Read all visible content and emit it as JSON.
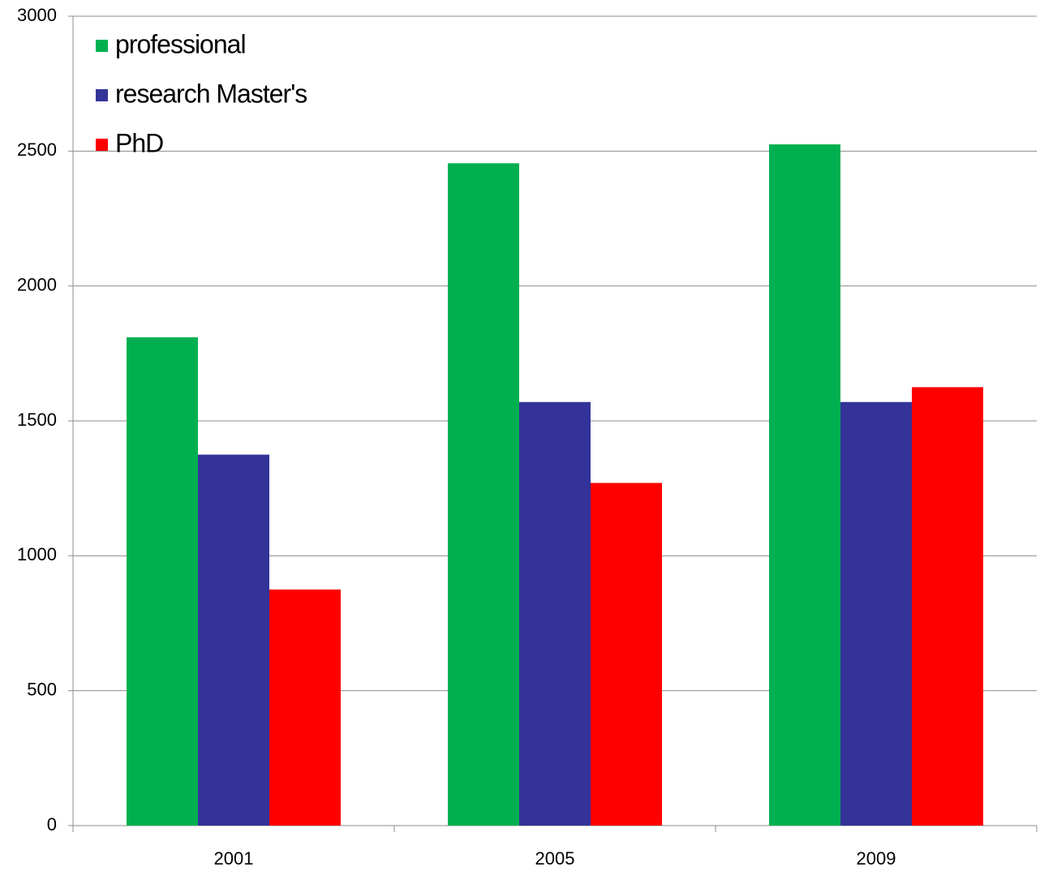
{
  "chart_data": {
    "type": "bar",
    "categories": [
      "2001",
      "2005",
      "2009"
    ],
    "series": [
      {
        "name": "professional",
        "color": "#00b050",
        "values": [
          1810,
          2455,
          2525
        ]
      },
      {
        "name": "research Master's",
        "color": "#333399",
        "values": [
          1375,
          1570,
          1570
        ]
      },
      {
        "name": "PhD",
        "color": "#ff0000",
        "values": [
          875,
          1270,
          1625
        ]
      }
    ],
    "ylim": [
      0,
      3000
    ],
    "yticks": [
      0,
      500,
      1000,
      1500,
      2000,
      2500,
      3000
    ],
    "grid": true,
    "legend": "upper left"
  }
}
